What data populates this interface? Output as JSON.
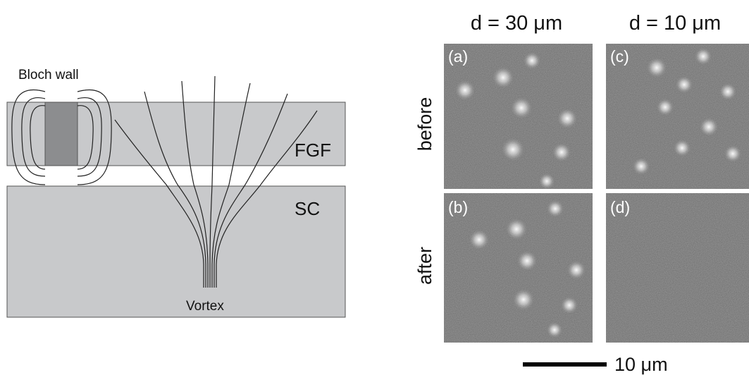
{
  "schematic": {
    "bloch_wall_label": "Bloch wall",
    "fgf_label": "FGF",
    "sc_label": "SC",
    "vortex_label": "Vortex"
  },
  "micrographs": {
    "col_left_title": "d = 30 μm",
    "col_right_title": "d = 10 μm",
    "row_top_label": "before",
    "row_bottom_label": "after",
    "panel_a": "(a)",
    "panel_b": "(b)",
    "panel_c": "(c)",
    "panel_d": "(d)",
    "scale_bar_label": "10 μm"
  },
  "colors": {
    "layer_fill": "#c8c9cb",
    "wall_fill": "#8c8d8f",
    "panel_bg": "#6d6d6d"
  }
}
